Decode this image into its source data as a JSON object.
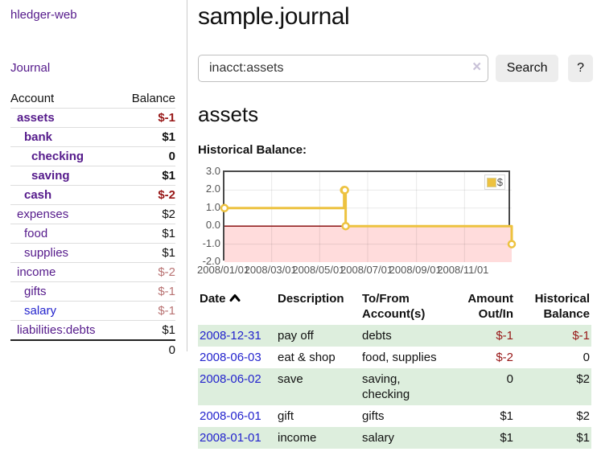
{
  "app": {
    "brand": "hledger-web",
    "nav_journal": "Journal"
  },
  "sidebar": {
    "headers": {
      "account": "Account",
      "balance": "Balance"
    },
    "accounts": [
      {
        "name": "assets",
        "balance": "$-1"
      },
      {
        "name": "bank",
        "balance": "$1"
      },
      {
        "name": "checking",
        "balance": "0"
      },
      {
        "name": "saving",
        "balance": "$1"
      },
      {
        "name": "cash",
        "balance": "$-2"
      },
      {
        "name": "expenses",
        "balance": "$2"
      },
      {
        "name": "food",
        "balance": "$1"
      },
      {
        "name": "supplies",
        "balance": "$1"
      },
      {
        "name": "income",
        "balance": "$-2"
      },
      {
        "name": "gifts",
        "balance": "$-1"
      },
      {
        "name": "salary",
        "balance": "$-1"
      },
      {
        "name": "liabilities:debts",
        "balance": "$1"
      }
    ],
    "total": "0"
  },
  "header": {
    "title": "sample.journal"
  },
  "search": {
    "value": "inacct:assets",
    "clear_icon": "×",
    "search_label": "Search",
    "help_label": "?"
  },
  "account_page": {
    "heading": "assets"
  },
  "chart_data": {
    "type": "line",
    "steps": true,
    "title": "Historical Balance:",
    "series": [
      {
        "name": "$",
        "color": "#edc240",
        "points": [
          [
            "2008-01-01",
            1
          ],
          [
            "2008-06-01",
            2
          ],
          [
            "2008-06-02",
            2
          ],
          [
            "2008-06-03",
            0
          ],
          [
            "2008-12-31",
            -1
          ]
        ]
      }
    ],
    "x_start": "2008-01-01",
    "x_end": "2008-12-31",
    "x_ticks": [
      "2008/01/01",
      "2008/03/01",
      "2008/05/01",
      "2008/07/01",
      "2008/09/01",
      "2008/11/01"
    ],
    "y_ticks": [
      3.0,
      2.0,
      1.0,
      0.0,
      -1.0,
      -2.0
    ],
    "ylim": [
      -2,
      3
    ],
    "grid": true,
    "legend_position": "top-right",
    "negative_band_color": "#ffdcdc",
    "zero_line_color": "#800000"
  },
  "register": {
    "columns": {
      "date": "Date",
      "description": "Description",
      "accounts": "To/From Account(s)",
      "amount": "Amount Out/In",
      "balance": "Historical Balance"
    },
    "sort": {
      "column": "Date",
      "direction": "up"
    },
    "rows": [
      {
        "date": "2008-12-31",
        "description": "pay off",
        "accounts": "debts",
        "amount": "$-1",
        "balance": "$-1"
      },
      {
        "date": "2008-06-03",
        "description": "eat & shop",
        "accounts": "food, supplies",
        "amount": "$-2",
        "balance": "0"
      },
      {
        "date": "2008-06-02",
        "description": "save",
        "accounts": "saving, checking",
        "amount": "0",
        "balance": "$2"
      },
      {
        "date": "2008-06-01",
        "description": "gift",
        "accounts": "gifts",
        "amount": "$1",
        "balance": "$2"
      },
      {
        "date": "2008-01-01",
        "description": "income",
        "accounts": "salary",
        "amount": "$1",
        "balance": "$1"
      }
    ]
  }
}
